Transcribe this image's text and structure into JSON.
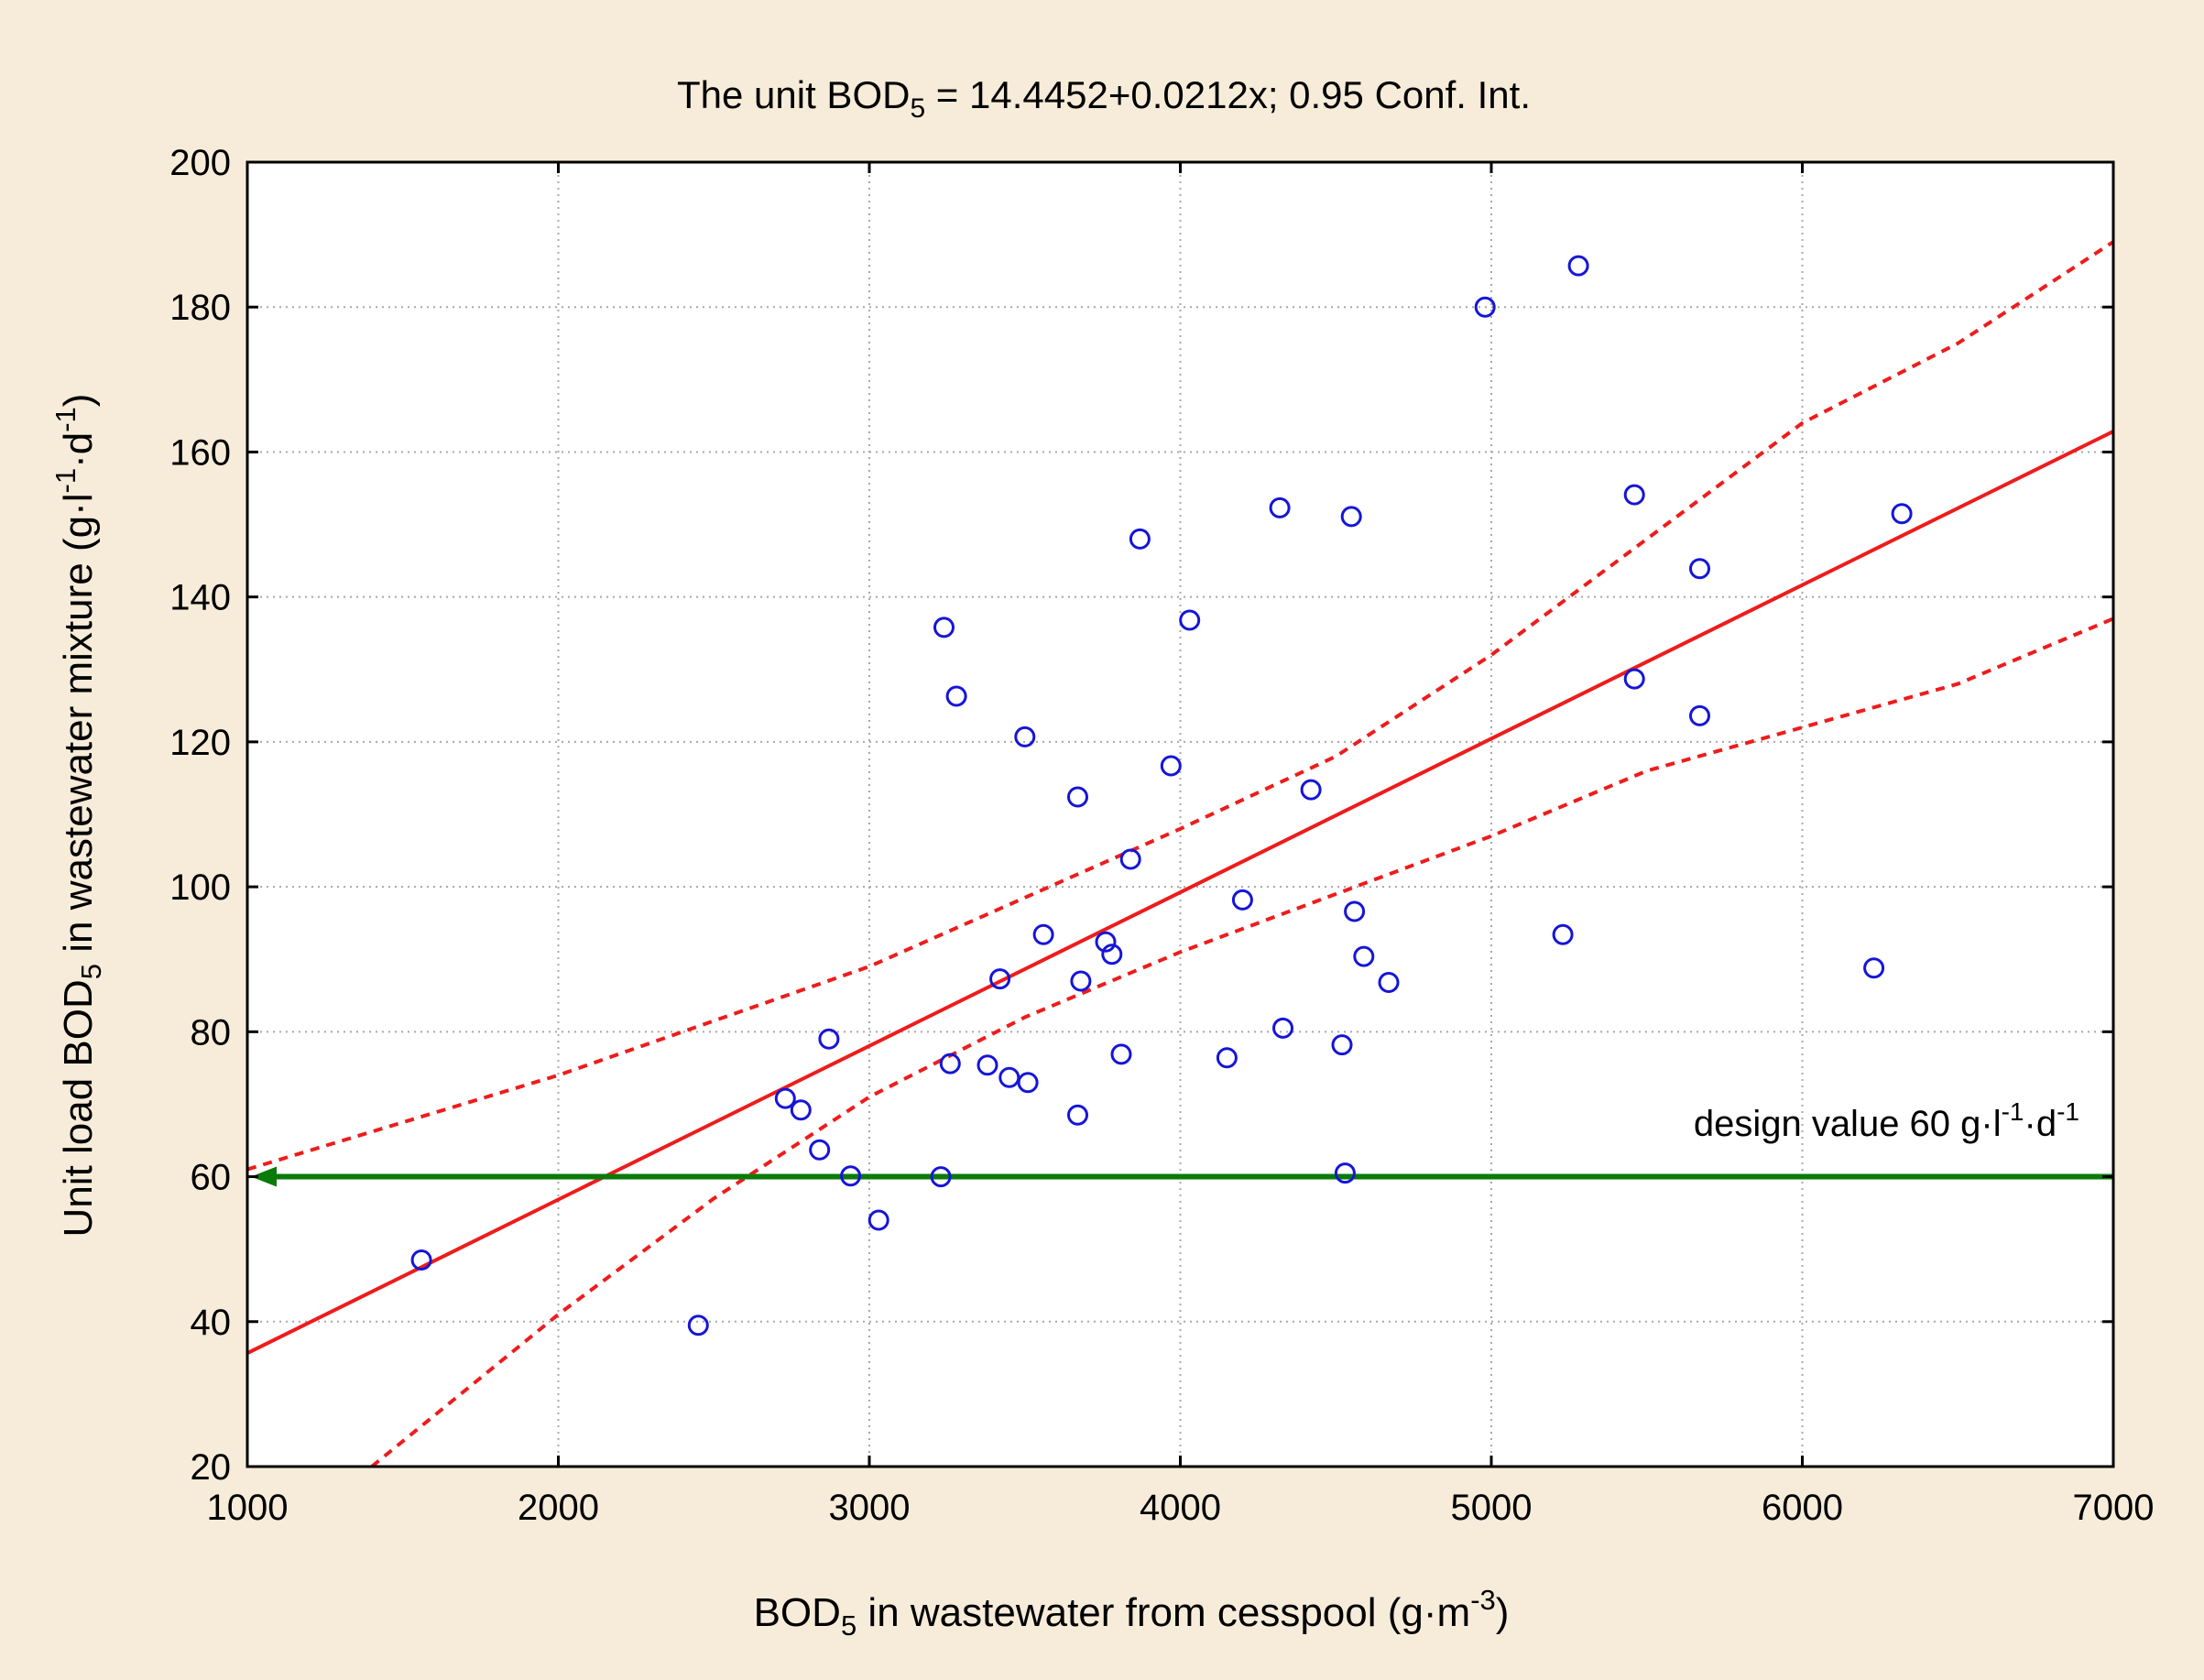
{
  "chart_data": {
    "type": "scatter",
    "title": {
      "main": "The unit BOD",
      "sub": "5",
      "rest": " = 14.4452+0.0212x; 0.95 Conf. Int."
    },
    "xlabel": {
      "main": "BOD",
      "sub": "5",
      "rest": " in wastewater from cesspool (g·m",
      "sup": "-3",
      "end": ")"
    },
    "ylabel": {
      "main": "Unit load BOD",
      "sub": "5",
      "mid": " in wastewater mixture (g·l",
      "sup1": "-1",
      "dot": "·d",
      "sup2": "-1",
      "end": ")"
    },
    "xlim": [
      1000,
      7000
    ],
    "ylim": [
      20,
      200
    ],
    "xticks": [
      "1000",
      "2000",
      "3000",
      "4000",
      "5000",
      "6000",
      "7000"
    ],
    "yticks": [
      "20",
      "40",
      "60",
      "80",
      "100",
      "120",
      "140",
      "160",
      "180",
      "200"
    ],
    "grid": true,
    "colors": {
      "points": "#1515d8",
      "regression": "#ee1c1c",
      "design": "#0a7a0a",
      "background": "#f7ecd9"
    },
    "regression": {
      "intercept": 14.4452,
      "slope": 0.0212
    },
    "ci_upper": [
      [
        1000,
        61
      ],
      [
        2000,
        74
      ],
      [
        3000,
        89
      ],
      [
        4000,
        108
      ],
      [
        4500,
        118
      ],
      [
        5000,
        132
      ],
      [
        5500,
        148
      ],
      [
        6000,
        164
      ],
      [
        6500,
        175
      ],
      [
        7000,
        189
      ]
    ],
    "ci_lower": [
      [
        1400,
        20
      ],
      [
        2000,
        41
      ],
      [
        2500,
        57
      ],
      [
        3000,
        71
      ],
      [
        3500,
        82
      ],
      [
        4000,
        91
      ],
      [
        5000,
        107
      ],
      [
        5500,
        116
      ],
      [
        6000,
        122
      ],
      [
        6500,
        128
      ],
      [
        7000,
        137
      ]
    ],
    "design_value": {
      "y": 60,
      "label_main": "design value 60 g·l",
      "sup1": "-1",
      "dot": "·d",
      "sup2": "-1"
    },
    "points": [
      {
        "x": 1560,
        "y": 48.5
      },
      {
        "x": 2450,
        "y": 39.5
      },
      {
        "x": 2730,
        "y": 70.8
      },
      {
        "x": 2780,
        "y": 69.2
      },
      {
        "x": 2840,
        "y": 63.7
      },
      {
        "x": 2870,
        "y": 79
      },
      {
        "x": 2940,
        "y": 60.1
      },
      {
        "x": 3030,
        "y": 54
      },
      {
        "x": 3230,
        "y": 60
      },
      {
        "x": 3240,
        "y": 135.8
      },
      {
        "x": 3260,
        "y": 75.6
      },
      {
        "x": 3280,
        "y": 126.3
      },
      {
        "x": 3380,
        "y": 75.4
      },
      {
        "x": 3420,
        "y": 87.3
      },
      {
        "x": 3450,
        "y": 73.7
      },
      {
        "x": 3500,
        "y": 120.7
      },
      {
        "x": 3510,
        "y": 73
      },
      {
        "x": 3560,
        "y": 93.4
      },
      {
        "x": 3670,
        "y": 68.5
      },
      {
        "x": 3670,
        "y": 112.4
      },
      {
        "x": 3680,
        "y": 87
      },
      {
        "x": 3760,
        "y": 92.4
      },
      {
        "x": 3780,
        "y": 90.7
      },
      {
        "x": 3810,
        "y": 76.9
      },
      {
        "x": 3840,
        "y": 103.8
      },
      {
        "x": 3870,
        "y": 148
      },
      {
        "x": 3970,
        "y": 116.7
      },
      {
        "x": 4030,
        "y": 136.8
      },
      {
        "x": 4150,
        "y": 76.4
      },
      {
        "x": 4200,
        "y": 98.2
      },
      {
        "x": 4320,
        "y": 152.3
      },
      {
        "x": 4330,
        "y": 80.5
      },
      {
        "x": 4420,
        "y": 113.4
      },
      {
        "x": 4520,
        "y": 78.2
      },
      {
        "x": 4530,
        "y": 60.5
      },
      {
        "x": 4550,
        "y": 151.1
      },
      {
        "x": 4560,
        "y": 96.6
      },
      {
        "x": 4590,
        "y": 90.4
      },
      {
        "x": 4670,
        "y": 86.8
      },
      {
        "x": 4980,
        "y": 180
      },
      {
        "x": 5230,
        "y": 93.4
      },
      {
        "x": 5280,
        "y": 185.7
      },
      {
        "x": 5460,
        "y": 154.1
      },
      {
        "x": 5460,
        "y": 128.7
      },
      {
        "x": 5670,
        "y": 143.9
      },
      {
        "x": 5670,
        "y": 123.6
      },
      {
        "x": 6230,
        "y": 88.8
      },
      {
        "x": 6320,
        "y": 151.5
      }
    ]
  }
}
